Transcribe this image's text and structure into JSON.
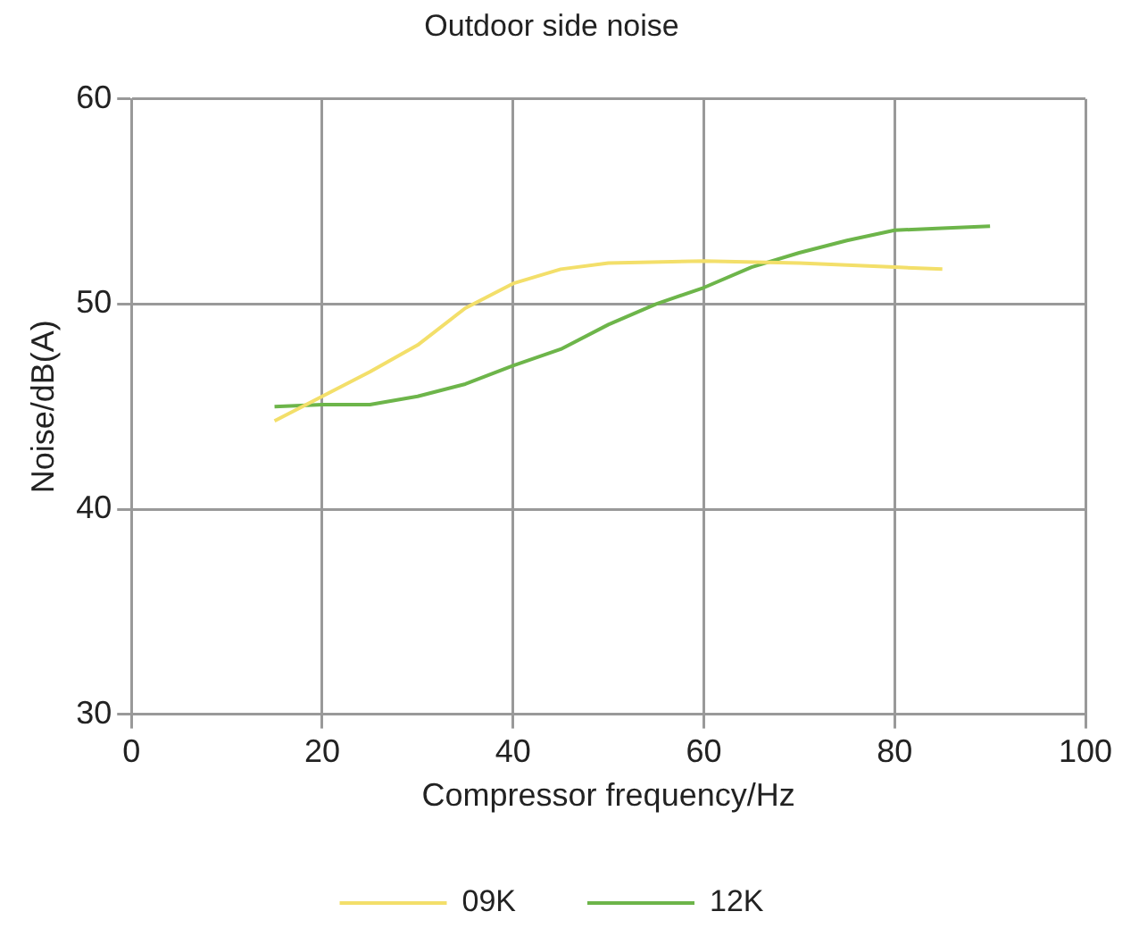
{
  "chart_data": {
    "type": "line",
    "title": "Outdoor side noise",
    "xlabel": "Compressor frequency/Hz",
    "ylabel": "Noise/dB(A)",
    "xlim": [
      0,
      100
    ],
    "xticks": [
      0,
      20,
      40,
      60,
      80,
      100
    ],
    "ylim": [
      30,
      60
    ],
    "yticks": [
      30,
      40,
      50,
      60
    ],
    "grid": true,
    "legend": "bottom",
    "marker": "none",
    "series": [
      {
        "name": "09K",
        "color": "#f3df6a",
        "x": [
          15,
          20,
          25,
          30,
          35,
          40,
          45,
          50,
          60,
          70,
          80,
          85
        ],
        "values": [
          44.3,
          45.5,
          46.7,
          48,
          49.8,
          51,
          51.7,
          52,
          52.1,
          52,
          51.8,
          51.7
        ]
      },
      {
        "name": "12K",
        "color": "#6db54a",
        "x": [
          15,
          20,
          25,
          30,
          35,
          40,
          45,
          50,
          55,
          60,
          65,
          70,
          75,
          80,
          85,
          90
        ],
        "values": [
          45,
          45.1,
          45.1,
          45.5,
          46.1,
          47,
          47.8,
          49,
          50,
          50.8,
          51.8,
          52.5,
          53.1,
          53.6,
          53.7,
          53.8
        ]
      }
    ]
  }
}
